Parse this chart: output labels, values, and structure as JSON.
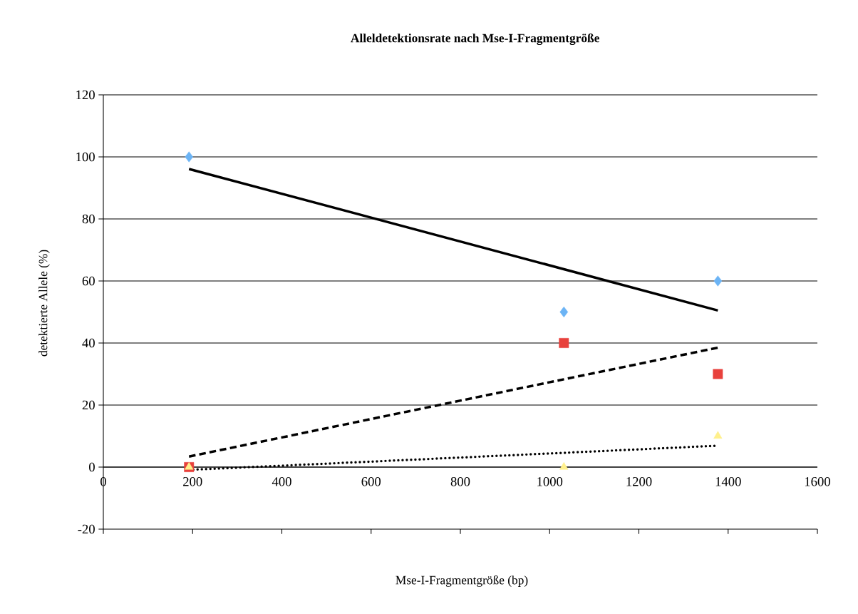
{
  "chart_data": {
    "type": "scatter",
    "title": "Alleldetektionsrate nach Mse-I-Fragmentgröße",
    "xlabel": "Mse-I-Fragmentgröße (bp)",
    "ylabel": "detektierte Allele (%)",
    "x": [
      192,
      1032,
      1377
    ],
    "series": [
      {
        "color": "#6cb4f5",
        "marker": "diamond",
        "values": [
          100,
          50,
          60
        ]
      },
      {
        "color": "#e8413c",
        "marker": "square",
        "values": [
          0,
          40,
          30
        ]
      },
      {
        "color": "#fff08c",
        "marker": "triangle",
        "values": [
          0,
          0,
          10
        ]
      },
      {
        "type": "line",
        "color": "#000000",
        "line_style": "solid",
        "values": [
          96.1,
          63.8,
          50.5
        ]
      },
      {
        "type": "line",
        "color": "#000000",
        "line_style": "dashed",
        "values": [
          3.4,
          28.3,
          38.5
        ]
      },
      {
        "type": "line",
        "color": "#000000",
        "line_style": "dotted",
        "values": [
          -0.9,
          4.6,
          6.9
        ]
      }
    ],
    "xlim": [
      0,
      1600
    ],
    "ylim": [
      -20,
      120
    ],
    "xticks": [
      0,
      200,
      400,
      600,
      800,
      1000,
      1200,
      1400,
      1600
    ],
    "yticks": [
      -20,
      0,
      20,
      40,
      60,
      80,
      100,
      120
    ],
    "grid": "y"
  }
}
